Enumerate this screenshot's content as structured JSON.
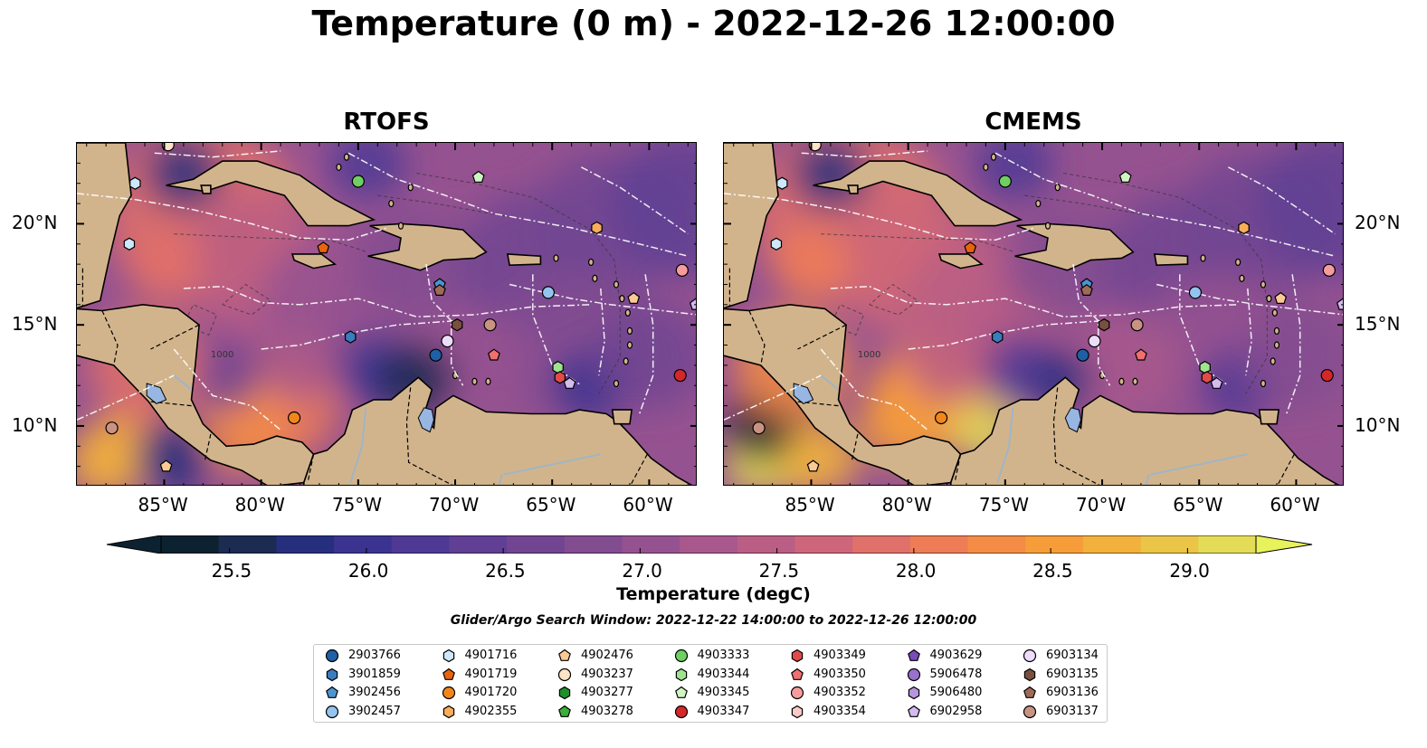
{
  "title": "Temperature (0 m) - 2022-12-26 12:00:00",
  "panels": [
    {
      "title": "RTOFS"
    },
    {
      "title": "CMEMS"
    }
  ],
  "map": {
    "lon_range": [
      -89.5,
      -57.5
    ],
    "lat_range": [
      7,
      24
    ],
    "lon_ticks": [
      "85°W",
      "80°W",
      "75°W",
      "70°W",
      "65°W",
      "60°W"
    ],
    "lat_ticks": [
      "20°N",
      "15°N",
      "10°N"
    ],
    "land_color": "#d2b48c",
    "lake_color": "#97b6e1",
    "bathymetry_label": "1000"
  },
  "colorbar": {
    "title": "Temperature (degC)",
    "range": [
      25.25,
      29.25
    ],
    "ticks": [
      "25.5",
      "26.0",
      "26.5",
      "27.0",
      "27.5",
      "28.0",
      "28.5",
      "29.0"
    ],
    "colors": [
      "#0d2230",
      "#1b2b52",
      "#262f7e",
      "#3a3490",
      "#4e3a95",
      "#603f94",
      "#714592",
      "#824c91",
      "#955290",
      "#a8588c",
      "#bb5e85",
      "#cd667a",
      "#e0706a",
      "#ee7d57",
      "#f48c45",
      "#f69d3a",
      "#f2b13d",
      "#eac548",
      "#e4dc57"
    ],
    "extend_min_color": "#0d2230",
    "extend_max_color": "#e8f25a"
  },
  "search_window": "Glider/Argo Search Window: 2022-12-22 14:00:00 to 2022-12-26 12:00:00",
  "legend": [
    {
      "id": "2903766",
      "marker": "circle",
      "color": "#1f5fa6"
    },
    {
      "id": "3901859",
      "marker": "hexagon",
      "color": "#3a7dbf"
    },
    {
      "id": "3902456",
      "marker": "pentagon",
      "color": "#4b95d0"
    },
    {
      "id": "3902457",
      "marker": "circle",
      "color": "#94c4ee"
    },
    {
      "id": "4901716",
      "marker": "hexagon",
      "color": "#cde8fb"
    },
    {
      "id": "4901719",
      "marker": "pentagon",
      "color": "#e8650b"
    },
    {
      "id": "4901720",
      "marker": "circle",
      "color": "#f3861a"
    },
    {
      "id": "4902355",
      "marker": "hexagon",
      "color": "#f9ad5b"
    },
    {
      "id": "4902476",
      "marker": "pentagon",
      "color": "#fbc995"
    },
    {
      "id": "4903237",
      "marker": "circle",
      "color": "#fde3c7"
    },
    {
      "id": "4903277",
      "marker": "hexagon",
      "color": "#1e8f2b"
    },
    {
      "id": "4903278",
      "marker": "pentagon",
      "color": "#3cae3c"
    },
    {
      "id": "4903333",
      "marker": "circle",
      "color": "#6fcf62"
    },
    {
      "id": "4903344",
      "marker": "hexagon",
      "color": "#9fe38e"
    },
    {
      "id": "4903345",
      "marker": "pentagon",
      "color": "#cff6c2"
    },
    {
      "id": "4903347",
      "marker": "circle",
      "color": "#d62728"
    },
    {
      "id": "4903349",
      "marker": "hexagon",
      "color": "#e24a4a"
    },
    {
      "id": "4903350",
      "marker": "pentagon",
      "color": "#f07070"
    },
    {
      "id": "4903352",
      "marker": "circle",
      "color": "#f79c9c"
    },
    {
      "id": "4903354",
      "marker": "hexagon",
      "color": "#fcc9c9"
    },
    {
      "id": "4903629",
      "marker": "pentagon",
      "color": "#7b4bb8"
    },
    {
      "id": "5906478",
      "marker": "circle",
      "color": "#9a70cc"
    },
    {
      "id": "5906480",
      "marker": "hexagon",
      "color": "#b794de"
    },
    {
      "id": "6902958",
      "marker": "pentagon",
      "color": "#d4bbf0"
    },
    {
      "id": "6903134",
      "marker": "circle",
      "color": "#eddcfb"
    },
    {
      "id": "6903135",
      "marker": "hexagon",
      "color": "#7a4f3f"
    },
    {
      "id": "6903136",
      "marker": "pentagon",
      "color": "#a06a58"
    },
    {
      "id": "6903137",
      "marker": "circle",
      "color": "#c99383"
    }
  ],
  "observations": [
    {
      "id": "4901716",
      "lon": -86.5,
      "lat": 22.0
    },
    {
      "id": "4901716",
      "lon": -86.8,
      "lat": 19.0
    },
    {
      "id": "4903333",
      "lon": -75.0,
      "lat": 22.1
    },
    {
      "id": "4903345",
      "lon": -68.8,
      "lat": 22.3
    },
    {
      "id": "4901719",
      "lon": -76.8,
      "lat": 18.8
    },
    {
      "id": "4902355",
      "lon": -62.7,
      "lat": 19.8
    },
    {
      "id": "4903352",
      "lon": -58.3,
      "lat": 17.7
    },
    {
      "id": "6902958",
      "lon": -57.6,
      "lat": 16.0
    },
    {
      "id": "3902457",
      "lon": -65.2,
      "lat": 16.6
    },
    {
      "id": "3902456",
      "lon": -70.8,
      "lat": 17.0
    },
    {
      "id": "6903136",
      "lon": -70.8,
      "lat": 16.7
    },
    {
      "id": "6903135",
      "lon": -69.9,
      "lat": 15.0
    },
    {
      "id": "6903137",
      "lon": -68.2,
      "lat": 15.0
    },
    {
      "id": "3901859",
      "lon": -75.4,
      "lat": 14.4
    },
    {
      "id": "2903766",
      "lon": -71.0,
      "lat": 13.5
    },
    {
      "id": "6903134",
      "lon": -70.4,
      "lat": 14.2
    },
    {
      "id": "4903350",
      "lon": -68.0,
      "lat": 13.5
    },
    {
      "id": "4903344",
      "lon": -64.7,
      "lat": 12.9
    },
    {
      "id": "4903349",
      "lon": -64.6,
      "lat": 12.4
    },
    {
      "id": "6902958",
      "lon": -64.1,
      "lat": 12.1
    },
    {
      "id": "4903347",
      "lon": -58.4,
      "lat": 12.5
    },
    {
      "id": "4901720",
      "lon": -78.3,
      "lat": 10.4
    },
    {
      "id": "6903137",
      "lon": -87.7,
      "lat": 9.9
    },
    {
      "id": "4902476",
      "lon": -84.9,
      "lat": 8.0
    },
    {
      "id": "4903237",
      "lon": -84.8,
      "lat": 23.9
    },
    {
      "id": "4902476",
      "lon": -60.8,
      "lat": 16.3
    }
  ]
}
